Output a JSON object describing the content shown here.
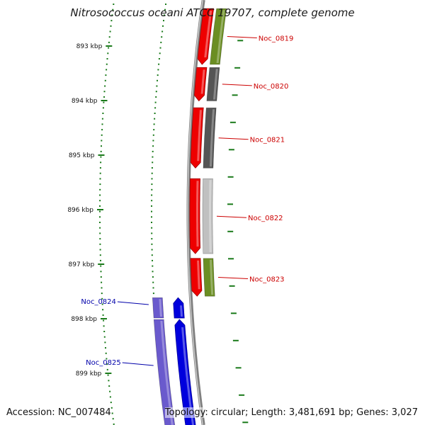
{
  "title": "Nitrosococcus oceani ATCC 19707, complete genome",
  "footer": {
    "accession": "Accession: NC_007484",
    "topology": "Topology: circular; Length: 3,481,691 bp; Genes: 3,027"
  },
  "colors": {
    "forward_cds": "#ee0000",
    "reverse_cds": "#0000dd",
    "backbone": "#808080",
    "tick": "#1a7a1a",
    "label_forward": "#cc0000",
    "label_reverse": "#0000aa",
    "cog_olive": "#6b8e23",
    "cog_dark_gray": "#555555",
    "cog_light_gray": "#c0c0c0",
    "cog_lavender": "#6a5acd"
  },
  "scale": {
    "unit": "kbp",
    "labels": [
      "893 kbp",
      "894 kbp",
      "895 kbp",
      "896 kbp",
      "897 kbp",
      "898 kbp",
      "899 kbp"
    ]
  },
  "genes": [
    {
      "name": "Noc_0819",
      "strand": "forward",
      "start_kbp": 892.3,
      "end_kbp": 893.35,
      "cog_color": "olive"
    },
    {
      "name": "Noc_0820",
      "strand": "forward",
      "start_kbp": 893.38,
      "end_kbp": 894.02,
      "cog_color": "dark_gray"
    },
    {
      "name": "Noc_0821",
      "strand": "forward",
      "start_kbp": 894.12,
      "end_kbp": 895.25,
      "cog_color": "dark_gray"
    },
    {
      "name": "Noc_0822",
      "strand": "forward",
      "start_kbp": 895.42,
      "end_kbp": 896.82,
      "cog_color": "light_gray"
    },
    {
      "name": "Noc_0823",
      "strand": "forward",
      "start_kbp": 896.88,
      "end_kbp": 897.6,
      "cog_color": "olive"
    },
    {
      "name": "Noc_0824",
      "strand": "reverse",
      "start_kbp": 897.6,
      "end_kbp": 898.0,
      "cog_color": "lavender"
    },
    {
      "name": "Noc_0825",
      "strand": "reverse",
      "start_kbp": 898.0,
      "end_kbp": 900.0,
      "cog_color": "lavender"
    }
  ]
}
